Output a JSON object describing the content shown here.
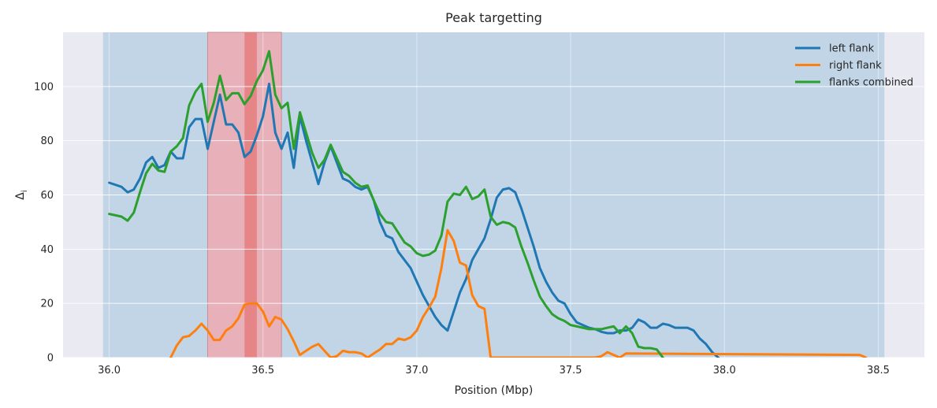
{
  "chart_data": {
    "type": "line",
    "title": "Peak targetting",
    "xlabel": "Position (Mbp)",
    "ylabel": "Δ",
    "ylabel_sub": "i",
    "xlim": [
      35.85,
      38.65
    ],
    "ylim": [
      0,
      120
    ],
    "xticks": [
      36.0,
      36.5,
      37.0,
      37.5,
      38.0,
      38.5
    ],
    "xtick_labels": [
      "36.0",
      "36.5",
      "37.0",
      "37.5",
      "38.0",
      "38.5"
    ],
    "yticks": [
      0,
      20,
      40,
      60,
      80,
      100
    ],
    "ytick_labels": [
      "0",
      "20",
      "40",
      "60",
      "80",
      "100"
    ],
    "grid": true,
    "legend_position": "top-right",
    "shaded_regions": [
      {
        "x0": 35.98,
        "x1": 38.52,
        "color": "#b3cde3",
        "role": "searched region"
      },
      {
        "x0": 36.32,
        "x1": 36.56,
        "color": "#f4a3a8",
        "role": "candidate peak window"
      },
      {
        "x0": 36.44,
        "x1": 36.48,
        "color": "#e57373",
        "role": "target peak"
      }
    ],
    "series": [
      {
        "name": "left flank",
        "color": "#1f77b4",
        "x": [
          36.0,
          36.04,
          36.06,
          36.08,
          36.1,
          36.12,
          36.14,
          36.16,
          36.18,
          36.2,
          36.22,
          36.24,
          36.26,
          36.28,
          36.3,
          36.32,
          36.34,
          36.36,
          36.38,
          36.4,
          36.42,
          36.44,
          36.46,
          36.48,
          36.5,
          36.52,
          36.54,
          36.56,
          36.58,
          36.6,
          36.62,
          36.64,
          36.66,
          36.68,
          36.7,
          36.72,
          36.74,
          36.76,
          36.78,
          36.8,
          36.82,
          36.84,
          36.86,
          36.88,
          36.9,
          36.92,
          36.94,
          36.96,
          36.98,
          37.0,
          37.02,
          37.04,
          37.06,
          37.08,
          37.1,
          37.12,
          37.14,
          37.16,
          37.18,
          37.2,
          37.22,
          37.24,
          37.26,
          37.28,
          37.3,
          37.32,
          37.34,
          37.36,
          37.38,
          37.4,
          37.42,
          37.44,
          37.46,
          37.48,
          37.5,
          37.52,
          37.54,
          37.56,
          37.58,
          37.6,
          37.62,
          37.64,
          37.66,
          37.68,
          37.7,
          37.72,
          37.74,
          37.76,
          37.78,
          37.8,
          37.82,
          37.84,
          37.86,
          37.88,
          37.9,
          37.92,
          37.94,
          37.96,
          37.98
        ],
        "y": [
          64.5,
          63,
          61,
          62,
          66,
          72,
          74,
          70,
          71,
          76,
          73.5,
          73.5,
          85,
          88,
          88,
          77,
          87,
          97,
          86,
          86,
          83,
          74,
          76,
          82,
          89,
          101,
          83,
          77,
          83,
          70,
          89,
          80,
          72,
          64,
          72,
          78,
          72,
          66,
          65,
          63,
          62,
          63,
          58,
          50,
          45,
          44,
          39,
          36,
          33,
          28,
          23,
          19,
          15,
          12,
          10,
          17,
          24,
          29,
          36,
          40,
          44,
          51,
          59,
          62,
          62.5,
          61,
          55,
          48,
          41,
          33,
          28,
          24,
          21,
          20,
          16,
          13,
          12,
          11,
          10.5,
          9.5,
          9,
          9,
          10,
          10,
          11,
          14,
          13,
          11,
          11,
          12.5,
          12,
          11,
          11,
          11,
          10,
          7,
          5,
          2,
          0
        ]
      },
      {
        "name": "right flank",
        "color": "#ff7f0e",
        "x": [
          36.2,
          36.22,
          36.24,
          36.26,
          36.28,
          36.3,
          36.32,
          36.34,
          36.36,
          36.38,
          36.4,
          36.42,
          36.44,
          36.46,
          36.48,
          36.5,
          36.52,
          36.54,
          36.56,
          36.58,
          36.6,
          36.62,
          36.64,
          36.66,
          36.68,
          36.7,
          36.72,
          36.74,
          36.76,
          36.78,
          36.8,
          36.82,
          36.84,
          36.86,
          36.88,
          36.9,
          36.92,
          36.94,
          36.96,
          36.98,
          37.0,
          37.02,
          37.04,
          37.06,
          37.08,
          37.1,
          37.12,
          37.14,
          37.16,
          37.18,
          37.2,
          37.22,
          37.24,
          37.58,
          37.6,
          37.62,
          37.64,
          37.66,
          37.68,
          38.44,
          38.46
        ],
        "y": [
          0,
          4.5,
          7.5,
          8,
          10,
          12.5,
          10,
          6.5,
          6.5,
          10,
          11.5,
          14.5,
          19.5,
          20,
          20,
          17,
          11.5,
          15,
          14,
          10.5,
          6,
          1,
          2.5,
          4,
          5,
          2.5,
          0,
          0.5,
          2.5,
          2,
          2,
          1.5,
          0,
          1.5,
          3,
          5,
          5,
          7,
          6.5,
          7.5,
          10,
          15,
          18.5,
          22.5,
          33,
          47,
          43,
          35,
          34,
          23,
          19,
          18,
          0,
          0,
          0.5,
          2,
          1,
          0,
          1.5,
          1,
          0
        ]
      },
      {
        "name": "flanks combined",
        "color": "#2ca02c",
        "x": [
          36.0,
          36.04,
          36.06,
          36.08,
          36.1,
          36.12,
          36.14,
          36.16,
          36.18,
          36.2,
          36.22,
          36.24,
          36.26,
          36.28,
          36.3,
          36.32,
          36.34,
          36.36,
          36.38,
          36.4,
          36.42,
          36.44,
          36.46,
          36.48,
          36.5,
          36.52,
          36.54,
          36.56,
          36.58,
          36.6,
          36.62,
          36.64,
          36.66,
          36.68,
          36.7,
          36.72,
          36.74,
          36.76,
          36.78,
          36.8,
          36.82,
          36.84,
          36.86,
          36.88,
          36.9,
          36.92,
          36.94,
          36.96,
          36.98,
          37.0,
          37.02,
          37.04,
          37.06,
          37.08,
          37.1,
          37.12,
          37.14,
          37.16,
          37.18,
          37.2,
          37.22,
          37.24,
          37.26,
          37.28,
          37.3,
          37.32,
          37.34,
          37.36,
          37.38,
          37.4,
          37.42,
          37.44,
          37.46,
          37.48,
          37.5,
          37.52,
          37.54,
          37.56,
          37.58,
          37.6,
          37.62,
          37.64,
          37.66,
          37.68,
          37.7,
          37.72,
          37.74,
          37.76,
          37.78,
          37.8
        ],
        "y": [
          53,
          52,
          50.5,
          53.5,
          61,
          68,
          71.5,
          69,
          68.5,
          76,
          78,
          81,
          93,
          98,
          101,
          87,
          94,
          104,
          95,
          97.5,
          97.5,
          93.5,
          96.5,
          102,
          106,
          113,
          97,
          92,
          94,
          77,
          90.5,
          83,
          75.5,
          70,
          73,
          78.5,
          73.5,
          68.5,
          67,
          64.5,
          63,
          63.5,
          58,
          53,
          50,
          49.5,
          46,
          42.5,
          41,
          38.5,
          37.5,
          38,
          39.5,
          45,
          57.5,
          60.5,
          60,
          63,
          58.5,
          59.5,
          62,
          52,
          49,
          50,
          49.5,
          48,
          41,
          35,
          28.5,
          22.5,
          19,
          16,
          14.5,
          13.5,
          12,
          11.5,
          11,
          10.5,
          10.5,
          10.5,
          11,
          11.5,
          9,
          11.5,
          9,
          4,
          3.5,
          3.5,
          3,
          0
        ]
      }
    ]
  }
}
